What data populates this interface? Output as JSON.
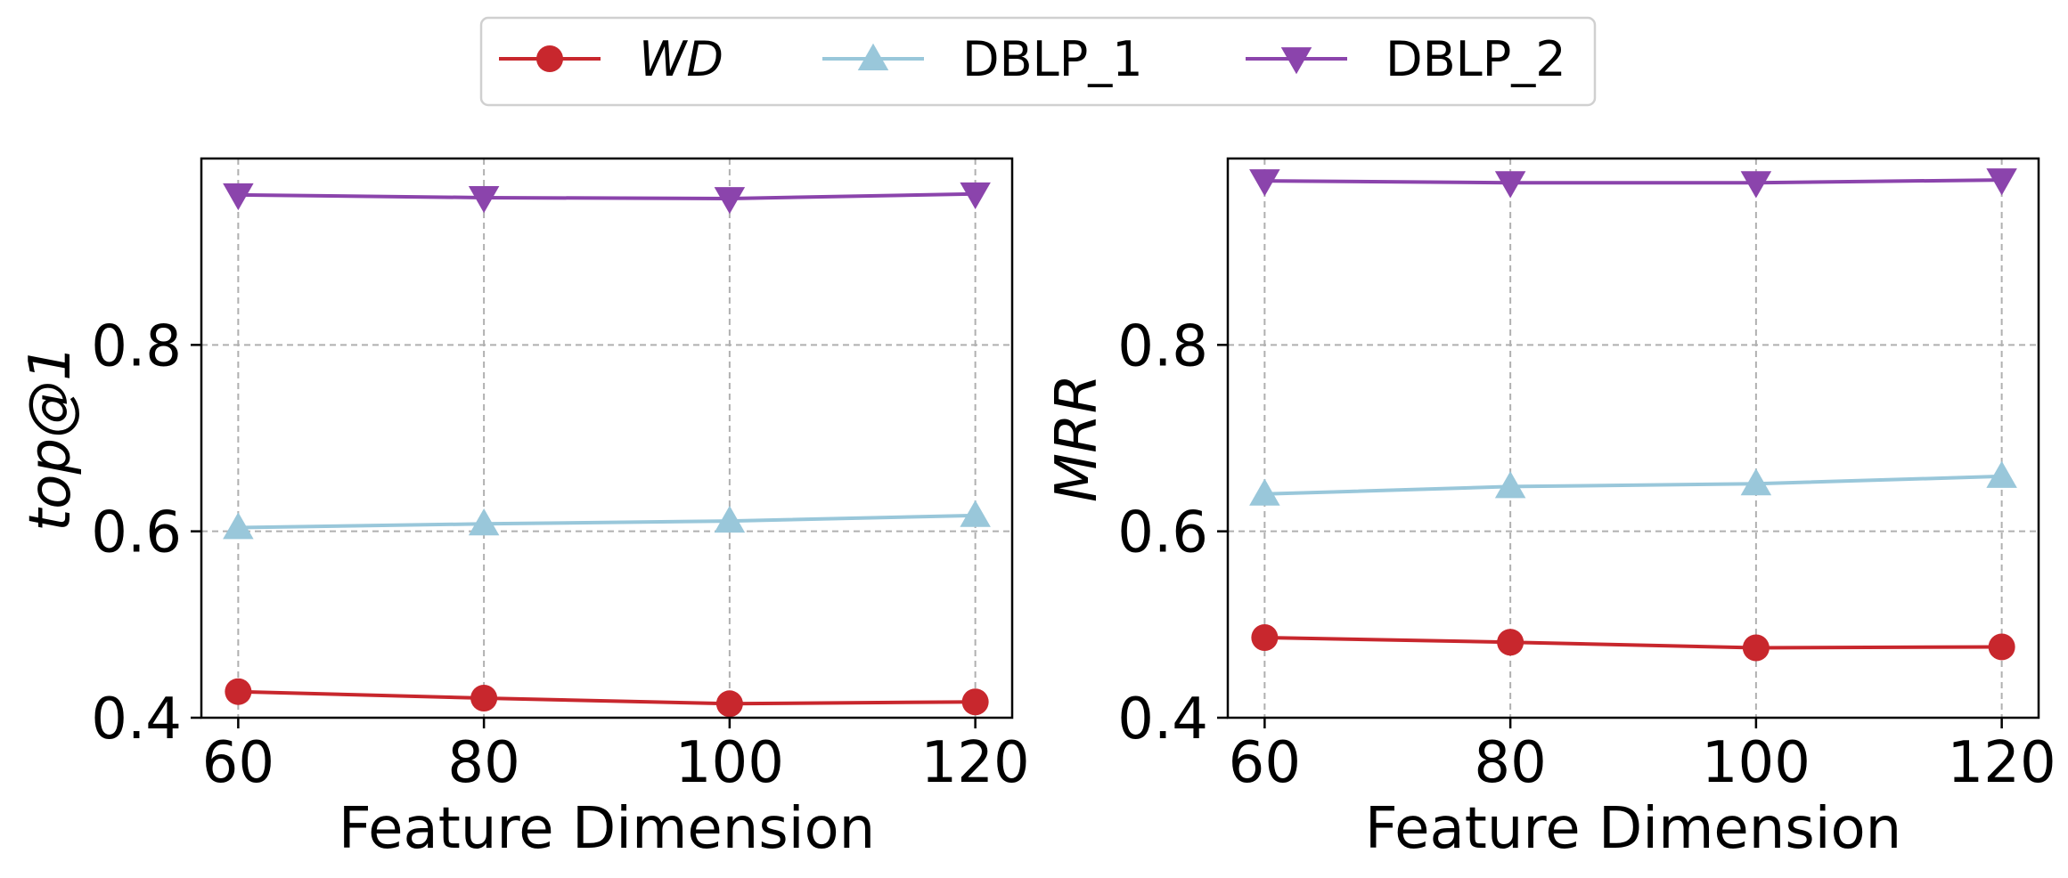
{
  "legend": {
    "placement": "top-center",
    "entries": [
      {
        "name": "WD",
        "color": "#c8272d",
        "marker": "circle",
        "italic": true
      },
      {
        "name": "DBLP_1",
        "color": "#99c7da",
        "marker": "triangle-up",
        "italic": false
      },
      {
        "name": "DBLP_2",
        "color": "#8b44ac",
        "marker": "triangle-down",
        "italic": false
      }
    ]
  },
  "chart_data": [
    {
      "type": "line",
      "xlabel": "Feature Dimension",
      "ylabel": "top@1",
      "ylabel_italic": true,
      "x": [
        60,
        80,
        100,
        120
      ],
      "xlim": [
        57,
        123
      ],
      "ylim": [
        0.4,
        1.0
      ],
      "yticks": [
        0.4,
        0.6,
        0.8
      ],
      "grid": true,
      "series": [
        {
          "name": "WD",
          "values": [
            0.428,
            0.421,
            0.415,
            0.417
          ]
        },
        {
          "name": "DBLP_1",
          "values": [
            0.604,
            0.608,
            0.611,
            0.617
          ]
        },
        {
          "name": "DBLP_2",
          "values": [
            0.961,
            0.958,
            0.957,
            0.962
          ]
        }
      ]
    },
    {
      "type": "line",
      "xlabel": "Feature Dimension",
      "ylabel": "MRR",
      "ylabel_italic": true,
      "x": [
        60,
        80,
        100,
        120
      ],
      "xlim": [
        57,
        123
      ],
      "ylim": [
        0.4,
        1.0
      ],
      "yticks": [
        0.4,
        0.6,
        0.8
      ],
      "grid": true,
      "series": [
        {
          "name": "WD",
          "values": [
            0.486,
            0.481,
            0.475,
            0.476
          ]
        },
        {
          "name": "DBLP_1",
          "values": [
            0.64,
            0.648,
            0.651,
            0.659
          ]
        },
        {
          "name": "DBLP_2",
          "values": [
            0.976,
            0.974,
            0.974,
            0.977
          ]
        }
      ]
    }
  ]
}
